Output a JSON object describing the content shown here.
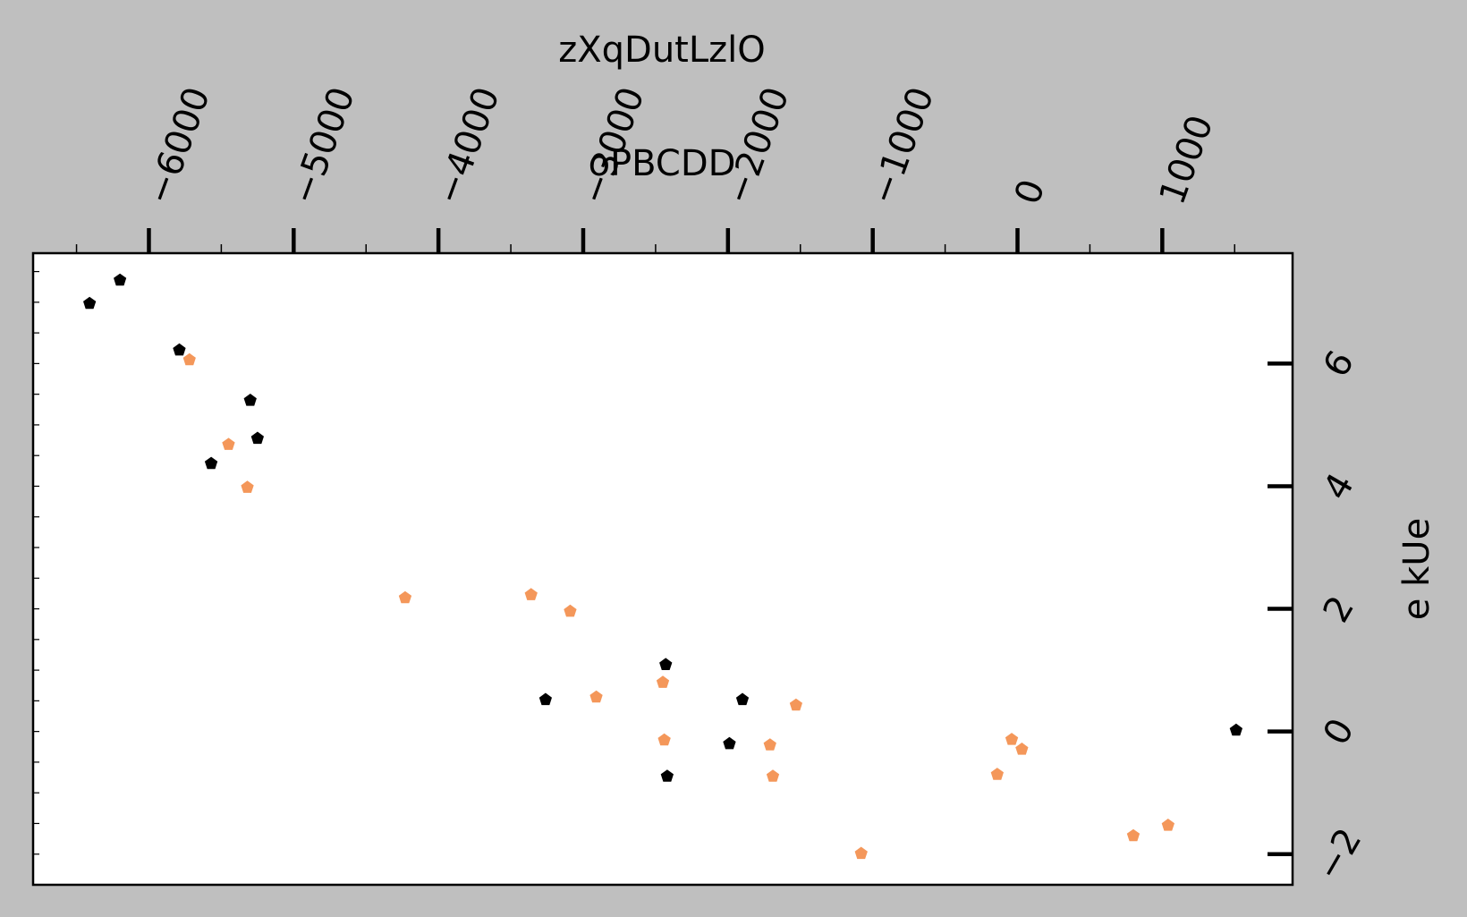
{
  "chart_data": {
    "type": "scatter",
    "title": "oPBCDD",
    "xlabel": "zXqDutLzlO",
    "ylabel": "e kUe",
    "xlim": [
      -6800,
      1900
    ],
    "ylim": [
      -2.5,
      7.8
    ],
    "x_ticks": [
      -6000,
      -5000,
      -4000,
      -3000,
      -2000,
      -1000,
      0,
      1000
    ],
    "x_tick_labels": [
      "−6000",
      "−5000",
      "−4000",
      "−3000",
      "−2000",
      "−1000",
      "0",
      "1000"
    ],
    "y_ticks": [
      -2,
      0,
      2,
      4,
      6
    ],
    "y_tick_labels": [
      "−2",
      "0",
      "2",
      "4",
      "6"
    ],
    "x_axis_position": "top",
    "y_axis_position": "right",
    "grid": false,
    "marker": "pentagon",
    "series": [
      {
        "color": "#000000",
        "points": [
          {
            "x": -6410,
            "y": 6.98
          },
          {
            "x": -6200,
            "y": 7.36
          },
          {
            "x": -5790,
            "y": 6.22
          },
          {
            "x": -5570,
            "y": 4.37
          },
          {
            "x": -5300,
            "y": 5.4
          },
          {
            "x": -5250,
            "y": 4.78
          },
          {
            "x": -3260,
            "y": 0.52
          },
          {
            "x": -2430,
            "y": 1.09
          },
          {
            "x": -2420,
            "y": -0.73
          },
          {
            "x": -1990,
            "y": -0.2
          },
          {
            "x": -1900,
            "y": 0.52
          },
          {
            "x": 1510,
            "y": 0.02
          }
        ]
      },
      {
        "color": "#f4975a",
        "points": [
          {
            "x": -5720,
            "y": 6.06
          },
          {
            "x": -5450,
            "y": 4.68
          },
          {
            "x": -5320,
            "y": 3.98
          },
          {
            "x": -4230,
            "y": 2.18
          },
          {
            "x": -3360,
            "y": 2.23
          },
          {
            "x": -3090,
            "y": 1.96
          },
          {
            "x": -2910,
            "y": 0.56
          },
          {
            "x": -2450,
            "y": 0.8
          },
          {
            "x": -2440,
            "y": -0.14
          },
          {
            "x": -1710,
            "y": -0.22
          },
          {
            "x": -1690,
            "y": -0.73
          },
          {
            "x": -1530,
            "y": 0.43
          },
          {
            "x": -1080,
            "y": -1.99
          },
          {
            "x": -140,
            "y": -0.7
          },
          {
            "x": -40,
            "y": -0.13
          },
          {
            "x": 30,
            "y": -0.29
          },
          {
            "x": 800,
            "y": -1.7
          },
          {
            "x": 1040,
            "y": -1.53
          }
        ]
      }
    ]
  }
}
